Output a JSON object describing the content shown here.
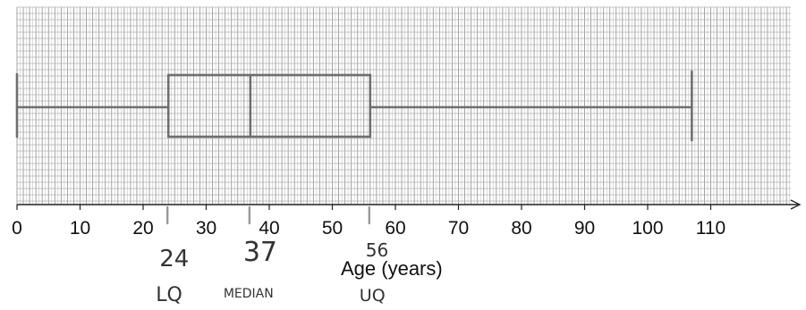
{
  "chart_data": {
    "type": "boxplot",
    "xlabel": "Age (years)",
    "xlim": [
      0,
      120
    ],
    "x_ticks": [
      "0",
      "10",
      "20",
      "30",
      "40",
      "50",
      "60",
      "70",
      "80",
      "90",
      "100",
      "110"
    ],
    "grid": true,
    "box": {
      "min": 0,
      "q1": 24,
      "median": 37,
      "q3": 56,
      "max": 107
    },
    "annotations": [
      {
        "text": "24",
        "x": 24,
        "row": 1
      },
      {
        "text": "37",
        "x": 37,
        "row": 1
      },
      {
        "text": "56",
        "x": 56,
        "row": 1
      },
      {
        "text": "LQ",
        "x": 24,
        "row": 2
      },
      {
        "text": "MEDIAN",
        "x": 37,
        "row": 2
      },
      {
        "text": "UQ",
        "x": 56,
        "row": 2
      }
    ]
  }
}
